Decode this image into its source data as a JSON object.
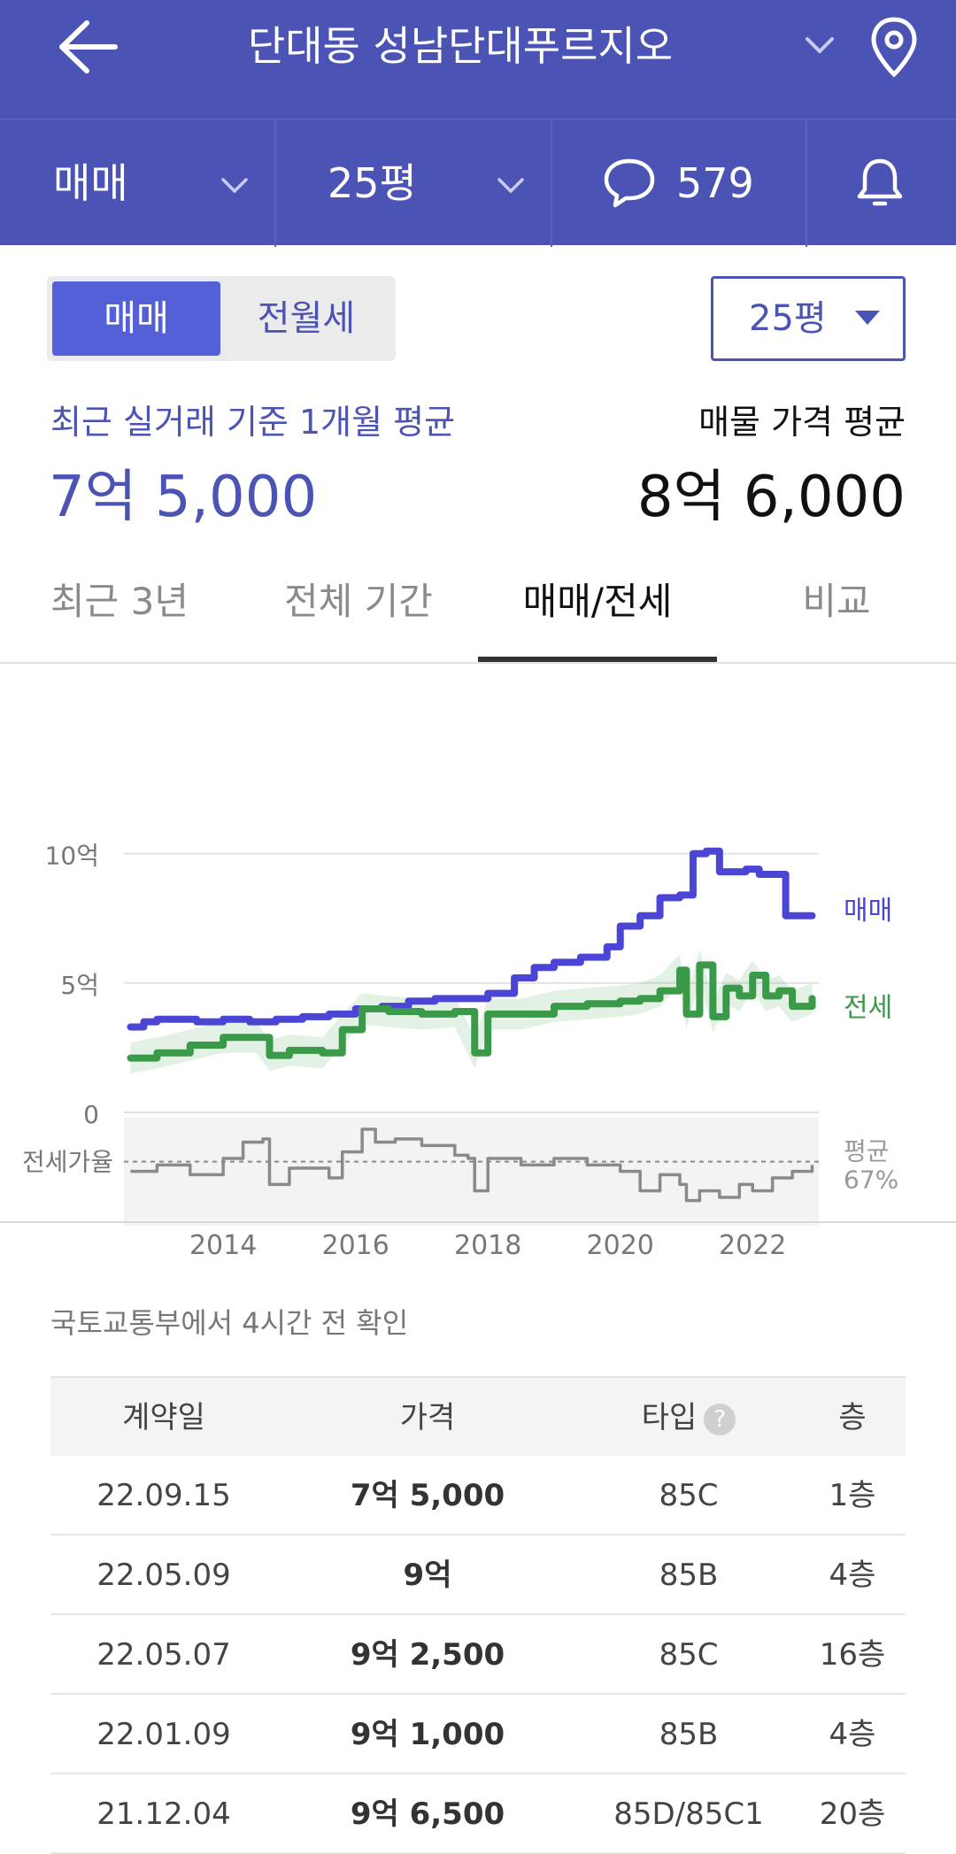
{
  "header": {
    "title": "단대동 성남단대푸르지오",
    "filters": {
      "deal_type": "매매",
      "size": "25평",
      "comment_count": "579"
    }
  },
  "toggle": {
    "active": "매매",
    "inactive": "전월세"
  },
  "size_select": {
    "value": "25평"
  },
  "summary": {
    "recent_label": "최근 실거래 기준 1개월 평균",
    "recent_value": "7억 5,000",
    "ask_label": "매물 가격 평균",
    "ask_value": "8억 6,000"
  },
  "tabs": [
    "최근 3년",
    "전체 기간",
    "매매/전세",
    "비교"
  ],
  "active_tab": 2,
  "chart_data": {
    "type": "line",
    "y_ticks": [
      "10억",
      "5억",
      "0"
    ],
    "x_ticks": [
      "2014",
      "2016",
      "2018",
      "2020",
      "2022"
    ],
    "ylim": [
      0,
      10.5
    ],
    "xlim": [
      2012.5,
      2023.0
    ],
    "series": [
      {
        "name": "매매",
        "color": "#4b45d6",
        "x": [
          2012.6,
          2012.8,
          2013.0,
          2013.3,
          2013.6,
          2014.0,
          2014.4,
          2014.8,
          2015.2,
          2015.6,
          2016.0,
          2016.4,
          2016.8,
          2017.2,
          2017.6,
          2018.0,
          2018.4,
          2018.7,
          2019.0,
          2019.4,
          2019.8,
          2020.0,
          2020.3,
          2020.6,
          2020.9,
          2021.1,
          2021.3,
          2021.5,
          2021.7,
          2021.9,
          2022.1,
          2022.4,
          2022.5,
          2022.7,
          2022.9
        ],
        "values": [
          3.3,
          3.5,
          3.6,
          3.6,
          3.5,
          3.6,
          3.5,
          3.6,
          3.7,
          3.8,
          4.0,
          4.1,
          4.3,
          4.4,
          4.4,
          4.6,
          5.2,
          5.6,
          5.8,
          6.0,
          6.4,
          7.2,
          7.6,
          8.3,
          8.4,
          10.0,
          10.1,
          9.3,
          9.3,
          9.4,
          9.2,
          9.2,
          7.6,
          7.6,
          7.6
        ]
      },
      {
        "name": "전세",
        "color": "#3a9a4a",
        "x": [
          2012.6,
          2013.0,
          2013.5,
          2014.0,
          2014.5,
          2014.7,
          2015.0,
          2015.5,
          2015.8,
          2016.1,
          2016.5,
          2017.0,
          2017.5,
          2017.8,
          2018.0,
          2018.5,
          2019.0,
          2019.5,
          2020.0,
          2020.3,
          2020.6,
          2020.9,
          2021.0,
          2021.2,
          2021.4,
          2021.6,
          2021.8,
          2022.0,
          2022.2,
          2022.4,
          2022.6,
          2022.9
        ],
        "values": [
          2.1,
          2.3,
          2.6,
          2.9,
          2.9,
          2.2,
          2.4,
          2.3,
          3.2,
          4.0,
          3.9,
          3.8,
          3.9,
          2.3,
          3.8,
          3.8,
          4.1,
          4.2,
          4.3,
          4.4,
          4.7,
          5.5,
          3.8,
          5.7,
          3.7,
          4.8,
          4.5,
          5.3,
          4.5,
          4.7,
          4.1,
          4.4
        ]
      }
    ],
    "ratio": {
      "label": "전세가율",
      "avg_label": "평균",
      "avg_value": "67%",
      "color": "#8a8a8a",
      "x": [
        2012.6,
        2013.0,
        2013.5,
        2014.0,
        2014.3,
        2014.6,
        2014.7,
        2015.0,
        2015.6,
        2015.8,
        2016.1,
        2016.3,
        2016.6,
        2017.0,
        2017.5,
        2017.7,
        2017.8,
        2018.0,
        2018.5,
        2019.0,
        2019.5,
        2020.0,
        2020.3,
        2020.6,
        2020.9,
        2021.0,
        2021.2,
        2021.5,
        2021.8,
        2022.0,
        2022.3,
        2022.6,
        2022.9
      ],
      "values": [
        64,
        66,
        63,
        68,
        73,
        74,
        60,
        65,
        62,
        70,
        77,
        73,
        74,
        72,
        69,
        68,
        58,
        68,
        66,
        68,
        66,
        64,
        58,
        63,
        60,
        55,
        58,
        56,
        60,
        58,
        62,
        64,
        66
      ]
    }
  },
  "source_note": "국토교통부에서 4시간 전 확인",
  "table": {
    "headers": [
      "계약일",
      "가격",
      "타입",
      "층"
    ],
    "help_icon": "?",
    "rows": [
      [
        "22.09.15",
        "7억 5,000",
        "85C",
        "1층"
      ],
      [
        "22.05.09",
        "9억",
        "85B",
        "4층"
      ],
      [
        "22.05.07",
        "9억 2,500",
        "85C",
        "16층"
      ],
      [
        "22.01.09",
        "9억 1,000",
        "85B",
        "4층"
      ],
      [
        "21.12.04",
        "9억 6,500",
        "85D/85C1",
        "20층"
      ]
    ]
  }
}
